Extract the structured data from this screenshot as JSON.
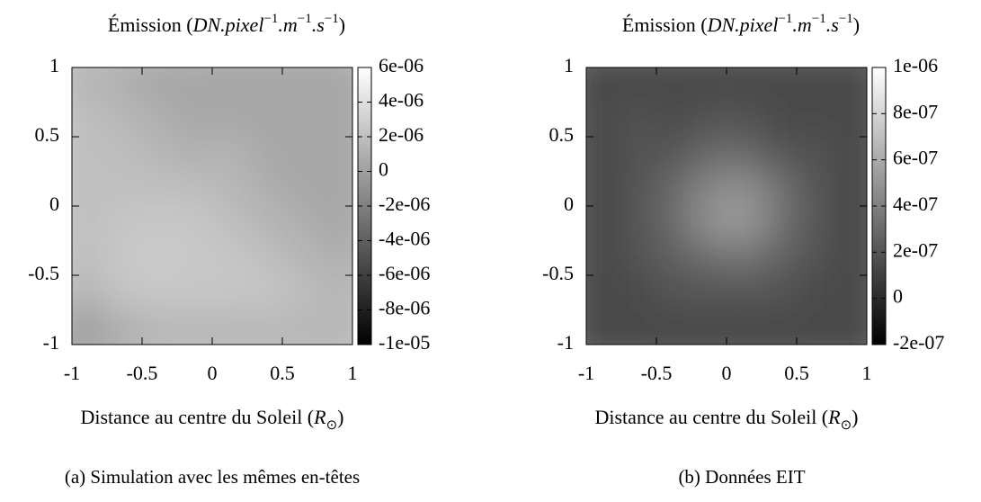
{
  "chart_data": [
    {
      "type": "heatmap",
      "title": [
        {
          "text": "Émission ("
        },
        {
          "text": "DN.pixel",
          "italic": true
        },
        {
          "text": "−1",
          "sup": true
        },
        {
          "text": ".m",
          "italic": true
        },
        {
          "text": "−1",
          "sup": true
        },
        {
          "text": ".s",
          "italic": true
        },
        {
          "text": "−1",
          "sup": true
        },
        {
          "text": ")"
        }
      ],
      "xlabel": [
        {
          "text": "Distance au centre du Soleil ("
        },
        {
          "text": "R",
          "italic": true
        },
        {
          "text": "⊙",
          "sub": true
        },
        {
          "text": ")"
        }
      ],
      "caption": "(a) Simulation avec les mêmes en-têtes",
      "xlim": [
        -1,
        1
      ],
      "xticks": [
        -1,
        -0.5,
        0,
        0.5,
        1
      ],
      "ylim": [
        -1,
        1
      ],
      "yticks": [
        -1,
        -0.5,
        0,
        0.5,
        1
      ],
      "colormap": "gray",
      "zlim": [
        -1e-05,
        6e-06
      ],
      "zticks": [
        {
          "value": 6e-06,
          "label": "6e-06"
        },
        {
          "value": 4e-06,
          "label": "4e-06"
        },
        {
          "value": 2e-06,
          "label": "2e-06"
        },
        0,
        {
          "value": -2e-06,
          "label": "-2e-06"
        },
        {
          "value": -4e-06,
          "label": "-4e-06"
        },
        {
          "value": -6e-06,
          "label": "-6e-06"
        },
        {
          "value": -8e-06,
          "label": "-8e-06"
        },
        {
          "value": -1e-05,
          "label": "-1e-05"
        }
      ],
      "z": [
        [
          1.5e-06,
          1e-06,
          5e-07,
          5e-07,
          5e-07,
          5e-07,
          5e-07,
          5e-07
        ],
        [
          2e-06,
          1.5e-06,
          1e-06,
          5e-07,
          5e-07,
          5e-07,
          5e-07,
          5e-07
        ],
        [
          2e-06,
          2e-06,
          1.5e-06,
          1e-06,
          1.5e-06,
          5e-07,
          5e-07,
          5e-07
        ],
        [
          2e-06,
          2e-06,
          2e-06,
          2e-06,
          1.5e-06,
          1e-06,
          5e-07,
          5e-07
        ],
        [
          2e-06,
          2.5e-06,
          2.5e-06,
          2.5e-06,
          2e-06,
          1.5e-06,
          1e-06,
          5e-07
        ],
        [
          2e-06,
          2.5e-06,
          3e-06,
          2.5e-06,
          2.5e-06,
          2e-06,
          1.5e-06,
          1e-06
        ],
        [
          1.5e-06,
          2.5e-06,
          2.5e-06,
          2.5e-06,
          2.5e-06,
          2.5e-06,
          2e-06,
          1.5e-06
        ],
        [
          0,
          1e-06,
          1.5e-06,
          1.5e-06,
          1.5e-06,
          1.5e-06,
          1.5e-06,
          1.5e-06
        ]
      ]
    },
    {
      "type": "heatmap",
      "title": [
        {
          "text": "Émission ("
        },
        {
          "text": "DN.pixel",
          "italic": true
        },
        {
          "text": "−1",
          "sup": true
        },
        {
          "text": ".m",
          "italic": true
        },
        {
          "text": "−1",
          "sup": true
        },
        {
          "text": ".s",
          "italic": true
        },
        {
          "text": "−1",
          "sup": true
        },
        {
          "text": ")"
        }
      ],
      "xlabel": [
        {
          "text": "Distance au centre du Soleil ("
        },
        {
          "text": "R",
          "italic": true
        },
        {
          "text": "⊙",
          "sub": true
        },
        {
          "text": ")"
        }
      ],
      "caption": "(b) Données EIT",
      "xlim": [
        -1,
        1
      ],
      "xticks": [
        -1,
        -0.5,
        0,
        0.5,
        1
      ],
      "ylim": [
        -1,
        1
      ],
      "yticks": [
        -1,
        -0.5,
        0,
        0.5,
        1
      ],
      "colormap": "gray",
      "zlim": [
        -2e-07,
        1e-06
      ],
      "zticks": [
        {
          "value": 1e-06,
          "label": "1e-06"
        },
        {
          "value": 8e-07,
          "label": "8e-07"
        },
        {
          "value": 6e-07,
          "label": "6e-07"
        },
        {
          "value": 4e-07,
          "label": "4e-07"
        },
        {
          "value": 2e-07,
          "label": "2e-07"
        },
        0,
        {
          "value": -2e-07,
          "label": "-2e-07"
        }
      ],
      "z": [
        [
          1.5e-07,
          1.5e-07,
          1.5e-07,
          1.5e-07,
          1.5e-07,
          1.5e-07,
          1.5e-07,
          1.5e-07
        ],
        [
          1.5e-07,
          2e-07,
          1.5e-07,
          2e-07,
          2e-07,
          1.5e-07,
          1.5e-07,
          1.5e-07
        ],
        [
          1.5e-07,
          2e-07,
          2e-07,
          3e-07,
          3e-07,
          2e-07,
          2e-07,
          1.5e-07
        ],
        [
          1.5e-07,
          2e-07,
          3e-07,
          4.5e-07,
          5e-07,
          3.5e-07,
          2e-07,
          1.5e-07
        ],
        [
          1.5e-07,
          2e-07,
          3e-07,
          5e-07,
          5.5e-07,
          3.5e-07,
          2e-07,
          1.5e-07
        ],
        [
          1.5e-07,
          2e-07,
          2.5e-07,
          3e-07,
          3.5e-07,
          2.5e-07,
          2e-07,
          1.5e-07
        ],
        [
          1.5e-07,
          1.5e-07,
          2e-07,
          2e-07,
          2e-07,
          2e-07,
          1.5e-07,
          1.5e-07
        ],
        [
          1.5e-07,
          1.5e-07,
          1.5e-07,
          1.5e-07,
          1.5e-07,
          1.5e-07,
          1.5e-07,
          1.5e-07
        ]
      ]
    }
  ]
}
